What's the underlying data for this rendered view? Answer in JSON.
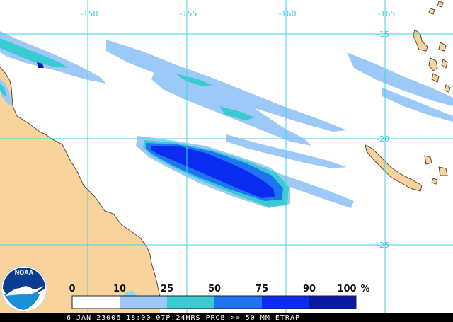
{
  "map": {
    "lon_labels": [
      "-150",
      "-155",
      "-160",
      "-165"
    ],
    "lat_labels": [
      "-15",
      "-20",
      "-25"
    ],
    "colors": {
      "land": "#f9d39c",
      "coast": "#5a4a3a",
      "ocean": "#ffffff",
      "grid": "#3fd4e6",
      "lake": "#8fd8ee"
    }
  },
  "logo": {
    "text": "NOAA",
    "colors": {
      "upper": "#0a3d8f",
      "lower": "#1a8fd6",
      "bird": "#ffffff"
    }
  },
  "legend": {
    "labels": [
      "0",
      "10",
      "25",
      "50",
      "75",
      "90",
      "100"
    ],
    "unit": "%",
    "bins": [
      {
        "from": 0,
        "to": 10,
        "color": "#ffffff"
      },
      {
        "from": 10,
        "to": 25,
        "color": "#9dc9f9"
      },
      {
        "from": 25,
        "to": 50,
        "color": "#39cbd0"
      },
      {
        "from": 50,
        "to": 75,
        "color": "#1e73f2"
      },
      {
        "from": 75,
        "to": 90,
        "color": "#0a2cf0"
      },
      {
        "from": 90,
        "to": 100,
        "color": "#0a1aa8"
      }
    ]
  },
  "status_line": "6 JAN 23006 18:00 07P:24HRS PROB >= 50 MM ETRAP"
}
